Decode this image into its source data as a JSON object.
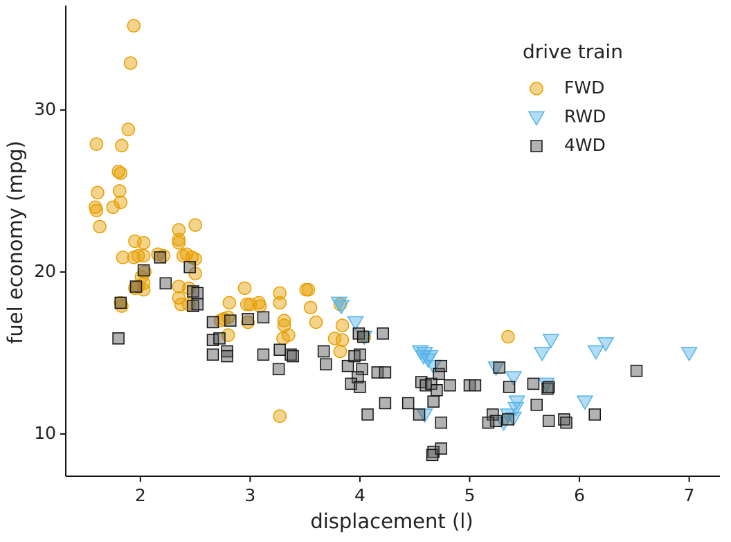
{
  "chart_data": {
    "type": "scatter",
    "x_label": "displacement (l)",
    "y_label": "fuel economy (mpg)",
    "legend_title": "drive train",
    "legend_position": "top-right",
    "grid": false,
    "xlim": [
      1.32,
      7.28
    ],
    "ylim": [
      7.39,
      36.45
    ],
    "xticks": [
      2,
      3,
      4,
      5,
      6,
      7
    ],
    "yticks": [
      10,
      20,
      30
    ],
    "series": [
      {
        "name": "FWD",
        "color": "#E69F00",
        "marker": "circle",
        "x": [
          1.6,
          1.94,
          1.91,
          1.89,
          1.83,
          1.8,
          1.82,
          1.61,
          1.81,
          1.59,
          1.6,
          1.75,
          1.82,
          1.63,
          1.95,
          2.03,
          2.35,
          2.35,
          2.35,
          2.5,
          1.84,
          1.94,
          1.98,
          2.03,
          2.16,
          2.21,
          2.39,
          2.42,
          2.47,
          2.5,
          2.04,
          2.01,
          2.03,
          1.98,
          2.03,
          1.95,
          1.82,
          1.83,
          2.35,
          2.35,
          2.37,
          2.44,
          2.44,
          2.5,
          2.73,
          2.76,
          2.81,
          2.8,
          2.8,
          2.95,
          2.97,
          3.0,
          2.98,
          3.08,
          3.09,
          3.27,
          3.27,
          3.31,
          3.31,
          3.35,
          3.3,
          3.27,
          3.51,
          3.53,
          3.55,
          3.6,
          3.77,
          3.84,
          3.84,
          3.82,
          4.04,
          5.35,
          3.82
        ],
        "values": [
          27.9,
          35.2,
          32.9,
          28.8,
          27.8,
          26.2,
          26.1,
          24.9,
          25.0,
          24.0,
          23.8,
          24.0,
          24.3,
          22.8,
          21.9,
          21.8,
          22.6,
          22.0,
          21.8,
          22.9,
          20.9,
          20.9,
          21.0,
          21.0,
          21.1,
          21.0,
          21.0,
          21.1,
          20.9,
          20.8,
          20.0,
          19.7,
          19.3,
          19.1,
          18.9,
          19.0,
          18.1,
          17.9,
          19.1,
          18.4,
          18.0,
          18.0,
          19.0,
          19.9,
          17.0,
          17.1,
          18.1,
          17.2,
          16.1,
          19.0,
          18.0,
          18.0,
          16.9,
          18.1,
          17.9,
          18.7,
          18.1,
          17.0,
          16.7,
          16.1,
          15.9,
          11.1,
          18.9,
          18.9,
          17.8,
          16.9,
          15.9,
          16.7,
          15.8,
          15.1,
          16.0,
          16.0,
          18.0
        ]
      },
      {
        "name": "RWD",
        "color": "#56B4E9",
        "marker": "triangle-down",
        "x": [
          3.81,
          3.83,
          3.96,
          4.04,
          4.55,
          4.59,
          4.64,
          4.62,
          4.67,
          4.59,
          5.24,
          5.4,
          5.7,
          5.66,
          5.74,
          6.15,
          6.24,
          7.0,
          5.43,
          5.42,
          5.35,
          5.4,
          5.31,
          6.05,
          4.58
        ],
        "values": [
          18.1,
          17.9,
          16.9,
          16.0,
          15.1,
          15.0,
          14.8,
          14.6,
          14.2,
          11.2,
          14.1,
          13.5,
          13.1,
          15.0,
          15.8,
          15.1,
          15.6,
          15.0,
          12.0,
          11.6,
          11.2,
          11.0,
          10.7,
          12.0,
          14.8
        ]
      },
      {
        "name": "4WD",
        "color": "#555555",
        "marker": "square",
        "x": [
          1.8,
          2.03,
          1.96,
          1.82,
          2.18,
          2.23,
          2.45,
          2.48,
          2.52,
          2.48,
          2.52,
          2.66,
          2.82,
          2.66,
          2.72,
          2.66,
          2.79,
          2.79,
          2.98,
          3.12,
          3.12,
          3.27,
          3.26,
          3.37,
          3.39,
          3.67,
          3.69,
          3.89,
          3.95,
          3.99,
          4.03,
          4.21,
          4.0,
          4.02,
          3.98,
          3.92,
          4.0,
          4.16,
          4.23,
          4.07,
          4.23,
          4.44,
          4.56,
          4.6,
          4.65,
          4.72,
          4.74,
          4.7,
          4.67,
          4.54,
          4.74,
          4.67,
          4.66,
          4.74,
          4.82,
          5.0,
          5.05,
          5.27,
          5.36,
          5.21,
          5.24,
          5.35,
          5.61,
          5.71,
          5.72,
          5.72,
          5.86,
          5.88,
          6.14,
          6.52,
          5.17,
          5.58
        ],
        "values": [
          15.9,
          20.1,
          19.1,
          18.1,
          20.9,
          19.3,
          20.3,
          18.8,
          18.7,
          17.9,
          18.0,
          16.9,
          17.0,
          15.8,
          15.9,
          14.9,
          15.1,
          14.8,
          17.1,
          17.2,
          14.9,
          15.2,
          14.0,
          14.9,
          14.8,
          15.1,
          14.3,
          14.2,
          14.8,
          16.2,
          16.0,
          16.2,
          14.9,
          14.0,
          13.5,
          13.1,
          12.9,
          13.8,
          13.8,
          11.2,
          11.9,
          11.9,
          13.2,
          13.0,
          13.1,
          13.7,
          14.2,
          12.7,
          12.0,
          11.2,
          10.7,
          8.9,
          8.7,
          9.1,
          13.0,
          13.0,
          13.0,
          14.1,
          12.9,
          11.2,
          10.8,
          10.9,
          11.8,
          12.8,
          12.9,
          10.8,
          10.9,
          10.7,
          11.2,
          13.9,
          10.7,
          13.1
        ]
      }
    ]
  }
}
